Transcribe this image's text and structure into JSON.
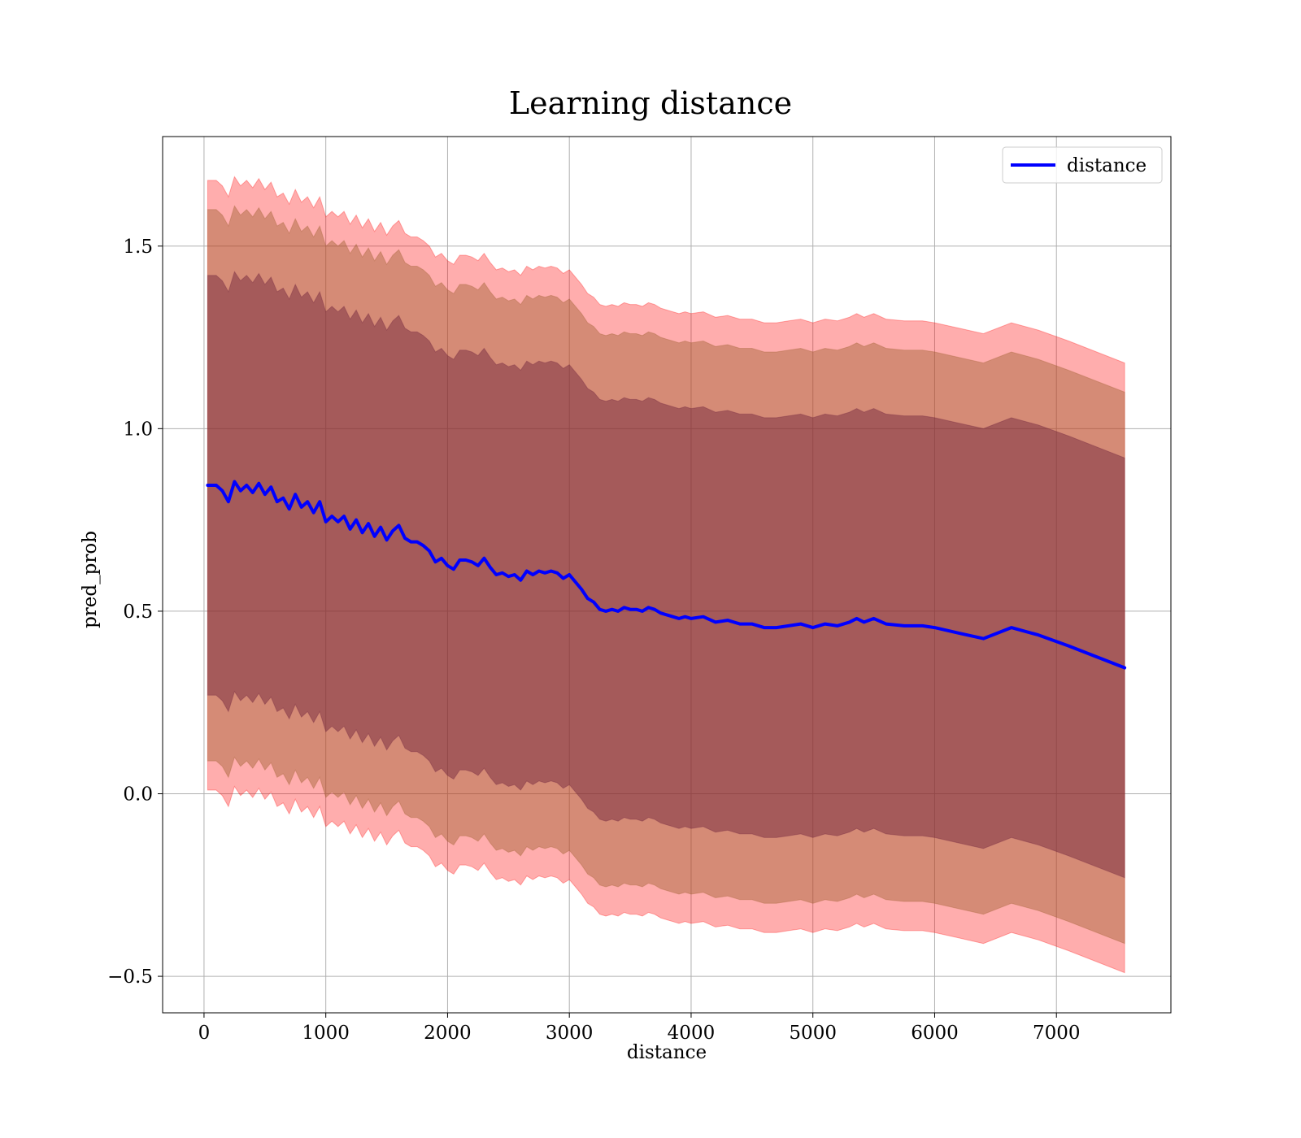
{
  "chart_data": {
    "type": "line",
    "title": "Learning distance",
    "xlabel": "distance",
    "ylabel": "pred_prob",
    "xlim": [
      -340,
      7940
    ],
    "ylim": [
      -0.6,
      1.8
    ],
    "x_ticks": [
      0,
      1000,
      2000,
      3000,
      4000,
      5000,
      6000,
      7000
    ],
    "x_tick_labels": [
      "0",
      "1000",
      "2000",
      "3000",
      "4000",
      "5000",
      "6000",
      "7000"
    ],
    "y_ticks": [
      -0.5,
      0.0,
      0.5,
      1.0,
      1.5
    ],
    "y_tick_labels": [
      "−0.5",
      "0.0",
      "0.5",
      "1.0",
      "1.5"
    ],
    "grid": true,
    "legend": {
      "position": "top-right",
      "entries": [
        "distance"
      ]
    },
    "colors": {
      "line": "#0000ff",
      "band_outer": "#ff0000",
      "band_inner": "#9c5c2a",
      "band_core": "#6b1f3a"
    },
    "series": [
      {
        "name": "distance",
        "x": [
          30,
          100,
          150,
          200,
          250,
          300,
          350,
          400,
          450,
          500,
          550,
          600,
          650,
          700,
          750,
          800,
          850,
          900,
          950,
          1000,
          1050,
          1100,
          1150,
          1200,
          1250,
          1300,
          1350,
          1400,
          1450,
          1500,
          1550,
          1600,
          1650,
          1700,
          1750,
          1800,
          1850,
          1900,
          1950,
          2000,
          2050,
          2100,
          2150,
          2200,
          2250,
          2300,
          2350,
          2400,
          2450,
          2500,
          2550,
          2600,
          2650,
          2700,
          2750,
          2800,
          2850,
          2900,
          2950,
          3000,
          3050,
          3100,
          3150,
          3200,
          3250,
          3300,
          3350,
          3400,
          3450,
          3500,
          3550,
          3600,
          3650,
          3700,
          3750,
          3800,
          3850,
          3900,
          3950,
          4000,
          4100,
          4200,
          4300,
          4400,
          4500,
          4600,
          4700,
          4800,
          4900,
          5000,
          5100,
          5200,
          5300,
          5360,
          5420,
          5500,
          5600,
          5750,
          5900,
          6000,
          6200,
          6400,
          6630,
          6850,
          7100,
          7560
        ],
        "y": [
          0.845,
          0.845,
          0.83,
          0.8,
          0.855,
          0.83,
          0.845,
          0.825,
          0.85,
          0.82,
          0.84,
          0.8,
          0.81,
          0.78,
          0.82,
          0.785,
          0.8,
          0.77,
          0.8,
          0.745,
          0.76,
          0.745,
          0.76,
          0.725,
          0.75,
          0.715,
          0.74,
          0.705,
          0.73,
          0.695,
          0.72,
          0.735,
          0.7,
          0.69,
          0.69,
          0.68,
          0.665,
          0.635,
          0.645,
          0.625,
          0.615,
          0.64,
          0.64,
          0.635,
          0.625,
          0.645,
          0.62,
          0.6,
          0.605,
          0.595,
          0.6,
          0.585,
          0.61,
          0.6,
          0.61,
          0.605,
          0.61,
          0.605,
          0.59,
          0.6,
          0.58,
          0.56,
          0.535,
          0.525,
          0.505,
          0.5,
          0.505,
          0.5,
          0.51,
          0.505,
          0.505,
          0.5,
          0.51,
          0.505,
          0.495,
          0.49,
          0.485,
          0.48,
          0.485,
          0.48,
          0.485,
          0.47,
          0.475,
          0.465,
          0.465,
          0.455,
          0.455,
          0.46,
          0.465,
          0.455,
          0.465,
          0.46,
          0.47,
          0.48,
          0.47,
          0.48,
          0.465,
          0.46,
          0.46,
          0.455,
          0.44,
          0.425,
          0.455,
          0.435,
          0.405,
          0.345
        ],
        "band_core": [
          0.575,
          0.575,
          0.575,
          0.575,
          0.575,
          0.575,
          0.575,
          0.575,
          0.575,
          0.575,
          0.575,
          0.575,
          0.575,
          0.575,
          0.575,
          0.575,
          0.575,
          0.575,
          0.575,
          0.575,
          0.575,
          0.575,
          0.575,
          0.575,
          0.575,
          0.575,
          0.575,
          0.575,
          0.575,
          0.575,
          0.575,
          0.575,
          0.575,
          0.575,
          0.575,
          0.575,
          0.575,
          0.575,
          0.575,
          0.575,
          0.575,
          0.575,
          0.575,
          0.575,
          0.575,
          0.575,
          0.575,
          0.575,
          0.575,
          0.575,
          0.575,
          0.575,
          0.575,
          0.575,
          0.575,
          0.575,
          0.575,
          0.575,
          0.575,
          0.575,
          0.575,
          0.575,
          0.575,
          0.575,
          0.575,
          0.575,
          0.575,
          0.575,
          0.575,
          0.575,
          0.575,
          0.575,
          0.575,
          0.575,
          0.575,
          0.575,
          0.575,
          0.575,
          0.575,
          0.575,
          0.575,
          0.575,
          0.575,
          0.575,
          0.575,
          0.575,
          0.575,
          0.575,
          0.575,
          0.575,
          0.575,
          0.575,
          0.575,
          0.575,
          0.575,
          0.575,
          0.575,
          0.575,
          0.575,
          0.575,
          0.575,
          0.575,
          0.575,
          0.575,
          0.575,
          0.575
        ],
        "band_inner": [
          0.755,
          0.755,
          0.755,
          0.755,
          0.755,
          0.755,
          0.755,
          0.755,
          0.755,
          0.755,
          0.755,
          0.755,
          0.755,
          0.755,
          0.755,
          0.755,
          0.755,
          0.755,
          0.755,
          0.755,
          0.755,
          0.755,
          0.755,
          0.755,
          0.755,
          0.755,
          0.755,
          0.755,
          0.755,
          0.755,
          0.755,
          0.755,
          0.755,
          0.755,
          0.755,
          0.755,
          0.755,
          0.755,
          0.755,
          0.755,
          0.755,
          0.755,
          0.755,
          0.755,
          0.755,
          0.755,
          0.755,
          0.755,
          0.755,
          0.755,
          0.755,
          0.755,
          0.755,
          0.755,
          0.755,
          0.755,
          0.755,
          0.755,
          0.755,
          0.755,
          0.755,
          0.755,
          0.755,
          0.755,
          0.755,
          0.755,
          0.755,
          0.755,
          0.755,
          0.755,
          0.755,
          0.755,
          0.755,
          0.755,
          0.755,
          0.755,
          0.755,
          0.755,
          0.755,
          0.755,
          0.755,
          0.755,
          0.755,
          0.755,
          0.755,
          0.755,
          0.755,
          0.755,
          0.755,
          0.755,
          0.755,
          0.755,
          0.755,
          0.755,
          0.755,
          0.755,
          0.755,
          0.755,
          0.755,
          0.755,
          0.755,
          0.755,
          0.755,
          0.755,
          0.755,
          0.755
        ],
        "band_outer": [
          0.835,
          0.835,
          0.835,
          0.835,
          0.835,
          0.835,
          0.835,
          0.835,
          0.835,
          0.835,
          0.835,
          0.835,
          0.835,
          0.835,
          0.835,
          0.835,
          0.835,
          0.835,
          0.835,
          0.835,
          0.835,
          0.835,
          0.835,
          0.835,
          0.835,
          0.835,
          0.835,
          0.835,
          0.835,
          0.835,
          0.835,
          0.835,
          0.835,
          0.835,
          0.835,
          0.835,
          0.835,
          0.835,
          0.835,
          0.835,
          0.835,
          0.835,
          0.835,
          0.835,
          0.835,
          0.835,
          0.835,
          0.835,
          0.835,
          0.835,
          0.835,
          0.835,
          0.835,
          0.835,
          0.835,
          0.835,
          0.835,
          0.835,
          0.835,
          0.835,
          0.835,
          0.835,
          0.835,
          0.835,
          0.835,
          0.835,
          0.835,
          0.835,
          0.835,
          0.835,
          0.835,
          0.835,
          0.835,
          0.835,
          0.835,
          0.835,
          0.835,
          0.835,
          0.835,
          0.835,
          0.835,
          0.835,
          0.835,
          0.835,
          0.835,
          0.835,
          0.835,
          0.835,
          0.835,
          0.835,
          0.835,
          0.835,
          0.835,
          0.835,
          0.835,
          0.835,
          0.835,
          0.835,
          0.835,
          0.835,
          0.835,
          0.835,
          0.835,
          0.835,
          0.835,
          0.835
        ]
      }
    ]
  }
}
